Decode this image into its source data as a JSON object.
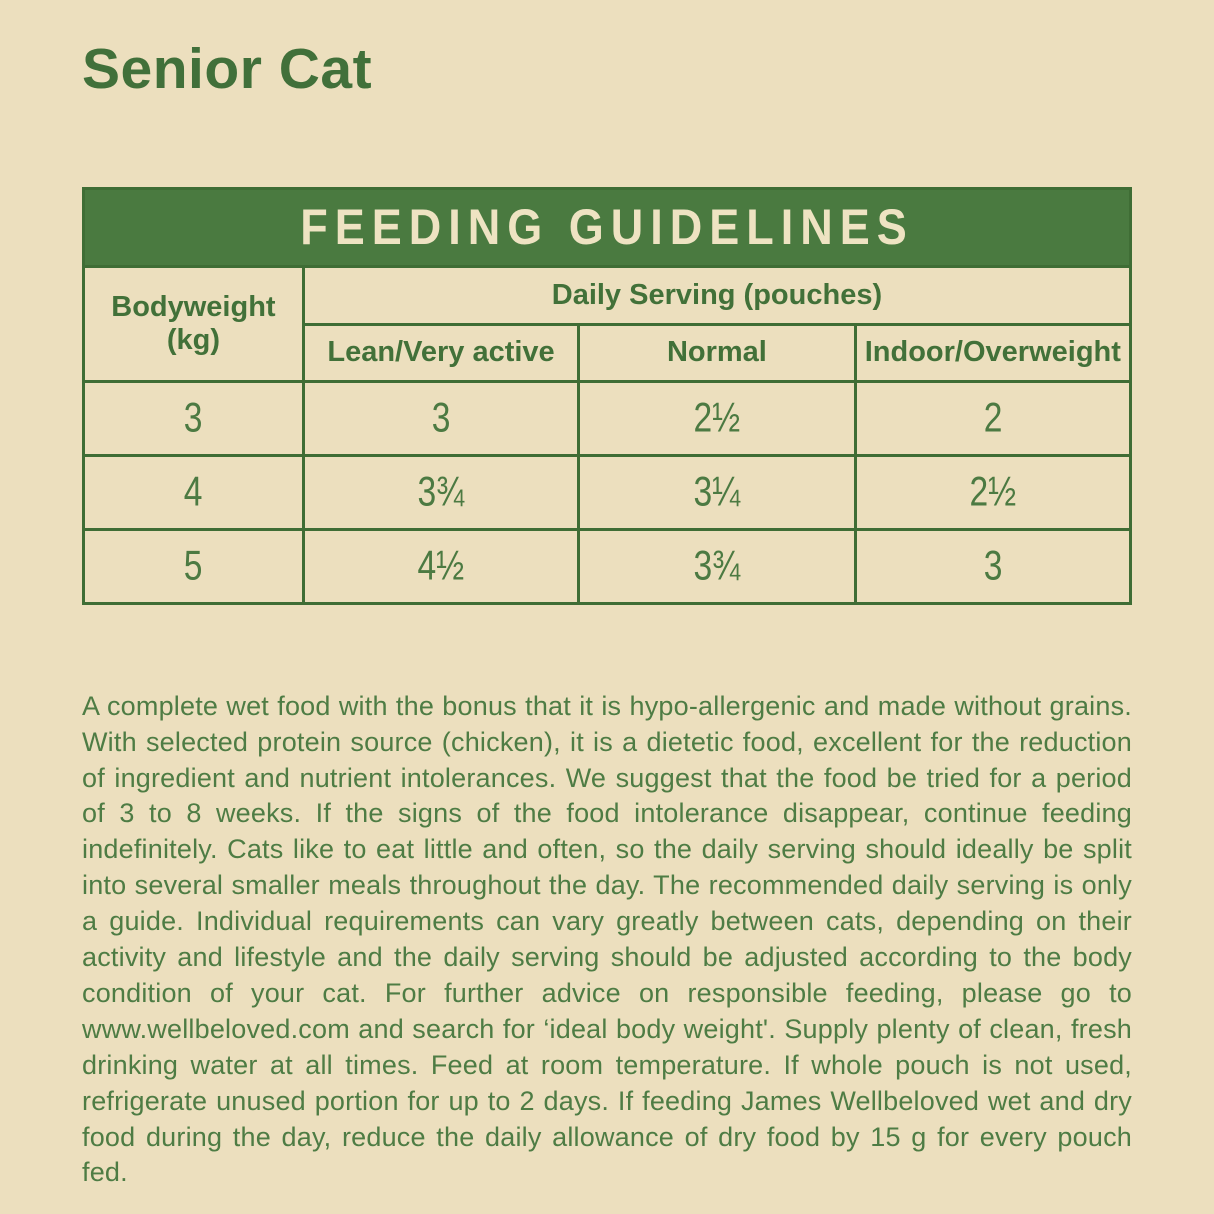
{
  "page": {
    "title": "Senior Cat"
  },
  "table": {
    "caption": "FEEDING GUIDELINES",
    "col_bodyweight": "Bodyweight (kg)",
    "col_daily_serving": "Daily Serving (pouches)",
    "sub_columns": [
      "Lean/Very active",
      "Normal",
      "Indoor/Overweight"
    ],
    "rows": [
      [
        "3",
        "3",
        "2½",
        "2"
      ],
      [
        "4",
        "3¾",
        "3¼",
        "2½"
      ],
      [
        "5",
        "4½",
        "3¾",
        "3"
      ]
    ]
  },
  "description": "A complete wet food with the bonus that it is hypo-allergenic and made without grains. With selected protein source (chicken), it is a dietetic food, excellent for the reduction of ingredient and nutrient intolerances. We suggest that the food be tried for a period of 3 to 8 weeks. If the signs of the food intolerance disappear, continue feeding indefinitely. Cats like to eat little and often, so the daily serving should ideally be split into several smaller meals throughout the day. The recommended daily serving is only a guide. Individual requirements can vary greatly between cats, depending on their activity and lifestyle and the daily serving should be adjusted according to the body condition of your cat. For further advice on responsible feeding, please go to www.wellbeloved.com and search for ‘ideal body weight'. Supply plenty of clean, fresh drinking water at all times. Feed at room temperature. If whole pouch is not used, refrigerate unused portion for up to 2 days. If feeding James Wellbeloved wet and dry food during the day, reduce the daily allowance of dry food by 15 g for every pouch fed.",
  "colors": {
    "background_cream": "#ecdfbe",
    "brand_green": "#4a7a40",
    "table_border_green": "#3f6d35",
    "text_green": "#4e7c44",
    "caption_text_cream": "#eee3c2"
  }
}
